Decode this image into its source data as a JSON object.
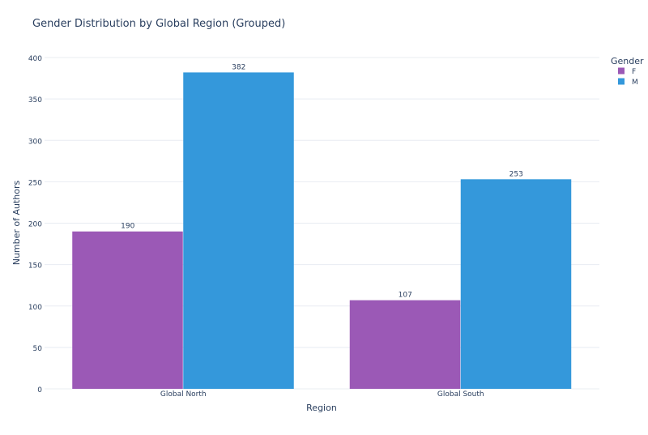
{
  "chart_data": {
    "type": "bar",
    "title": "Gender Distribution by Global Region (Grouped)",
    "xlabel": "Region",
    "ylabel": "Number of Authors",
    "categories": [
      "Global North",
      "Global South"
    ],
    "series": [
      {
        "name": "F",
        "values": [
          190,
          107
        ],
        "color": "#9b59b6"
      },
      {
        "name": "M",
        "values": [
          382,
          253
        ],
        "color": "#3498db"
      }
    ],
    "ylim": [
      0,
      400
    ],
    "yticks": [
      0,
      50,
      100,
      150,
      200,
      250,
      300,
      350,
      400
    ],
    "grid": true,
    "legend": {
      "title": "Gender",
      "position": "top-right"
    },
    "text_color": "#2a3f5f",
    "grid_color": "#e8ecf2"
  }
}
